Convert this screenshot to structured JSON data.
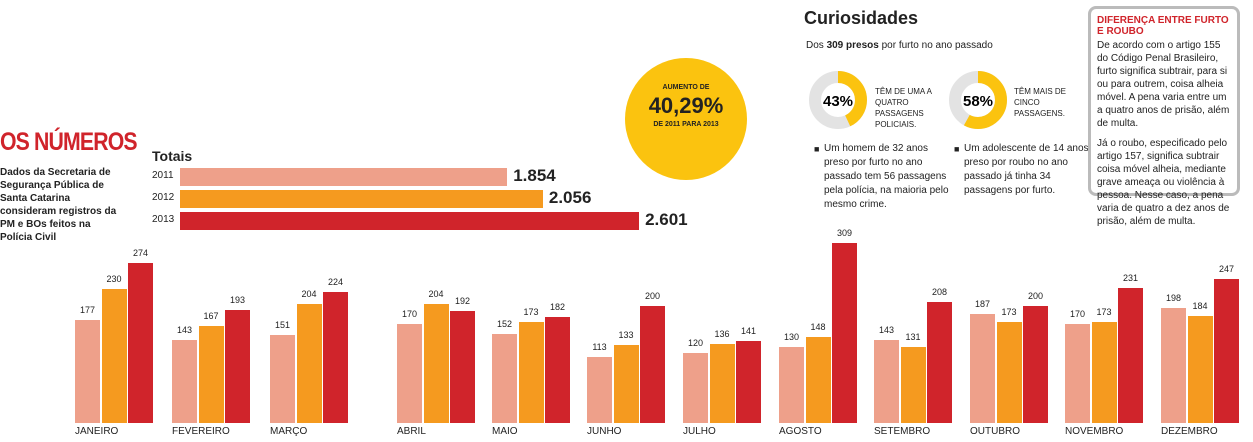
{
  "header": {
    "title": "OS NÚMEROS",
    "source": "Dados da Secretaria de Segurança Pública de Santa Catarina consideram registros da PM e BOs feitos na Polícia Civil"
  },
  "highlight": {
    "line1": "AUMENTO DE",
    "value": "40,29%",
    "line2": "DE 2011 PARA 2013"
  },
  "curiosidades": {
    "title": "Curiosidades",
    "sub_pre": "Dos ",
    "sub_bold": "309 presos",
    "sub_post": " por furto no ano passado",
    "donuts": [
      {
        "pct": 43,
        "label": "43%",
        "text": "TÊM DE UMA A QUATRO PASSAGENS POLICIAIS."
      },
      {
        "pct": 58,
        "label": "58%",
        "text": "TÊM MAIS DE CINCO PASSAGENS."
      }
    ],
    "notes": [
      "Um homem de 32 anos preso por furto no ano passado tem 56 passagens pela polícia, na maioria pelo mesmo crime.",
      "Um adolescente de 14 anos preso por roubo no ano passado já tinha 34 passagens por furto."
    ]
  },
  "box": {
    "title": "DIFERENÇA ENTRE FURTO E ROUBO",
    "p1": "De acordo com o artigo 155 do Código Penal Brasileiro, furto significa subtrair, para si ou para outrem, coisa alheia móvel. A pena varia entre um a quatro anos de prisão, além de multa.",
    "p2": "Já o roubo, especificado pelo artigo 157, significa subtrair coisa móvel alheia, mediante grave ameaça ou violência à pessoa. Nesse caso, a pena varia de quatro a dez anos de prisão, além de multa."
  },
  "colors": {
    "2011": "#eea08a",
    "2012": "#f59a1f",
    "2013": "#d0242b",
    "yellow": "#fbc30f",
    "grey": "#e3e3e3"
  },
  "chart_data": [
    {
      "type": "bar",
      "title": "Totais",
      "orientation": "horizontal",
      "categories": [
        "2011",
        "2012",
        "2013"
      ],
      "values": [
        1854,
        2056,
        2601
      ],
      "value_labels": [
        "1.854",
        "2.056",
        "2.601"
      ]
    },
    {
      "type": "bar",
      "categories": [
        "JANEIRO",
        "FEVEREIRO",
        "MARÇO",
        "ABRIL",
        "MAIO",
        "JUNHO",
        "JULHO",
        "AGOSTO",
        "SETEMBRO",
        "OUTUBRO",
        "NOVEMBRO",
        "DEZEMBRO"
      ],
      "series": [
        {
          "values": [
            177,
            143,
            151,
            170,
            152,
            113,
            120,
            130,
            143,
            187,
            170,
            198
          ]
        },
        {
          "values": [
            230,
            167,
            204,
            204,
            173,
            133,
            136,
            148,
            131,
            173,
            173,
            184
          ]
        },
        {
          "values": [
            274,
            193,
            224,
            192,
            182,
            200,
            141,
            309,
            208,
            200,
            231,
            247
          ]
        }
      ]
    }
  ]
}
